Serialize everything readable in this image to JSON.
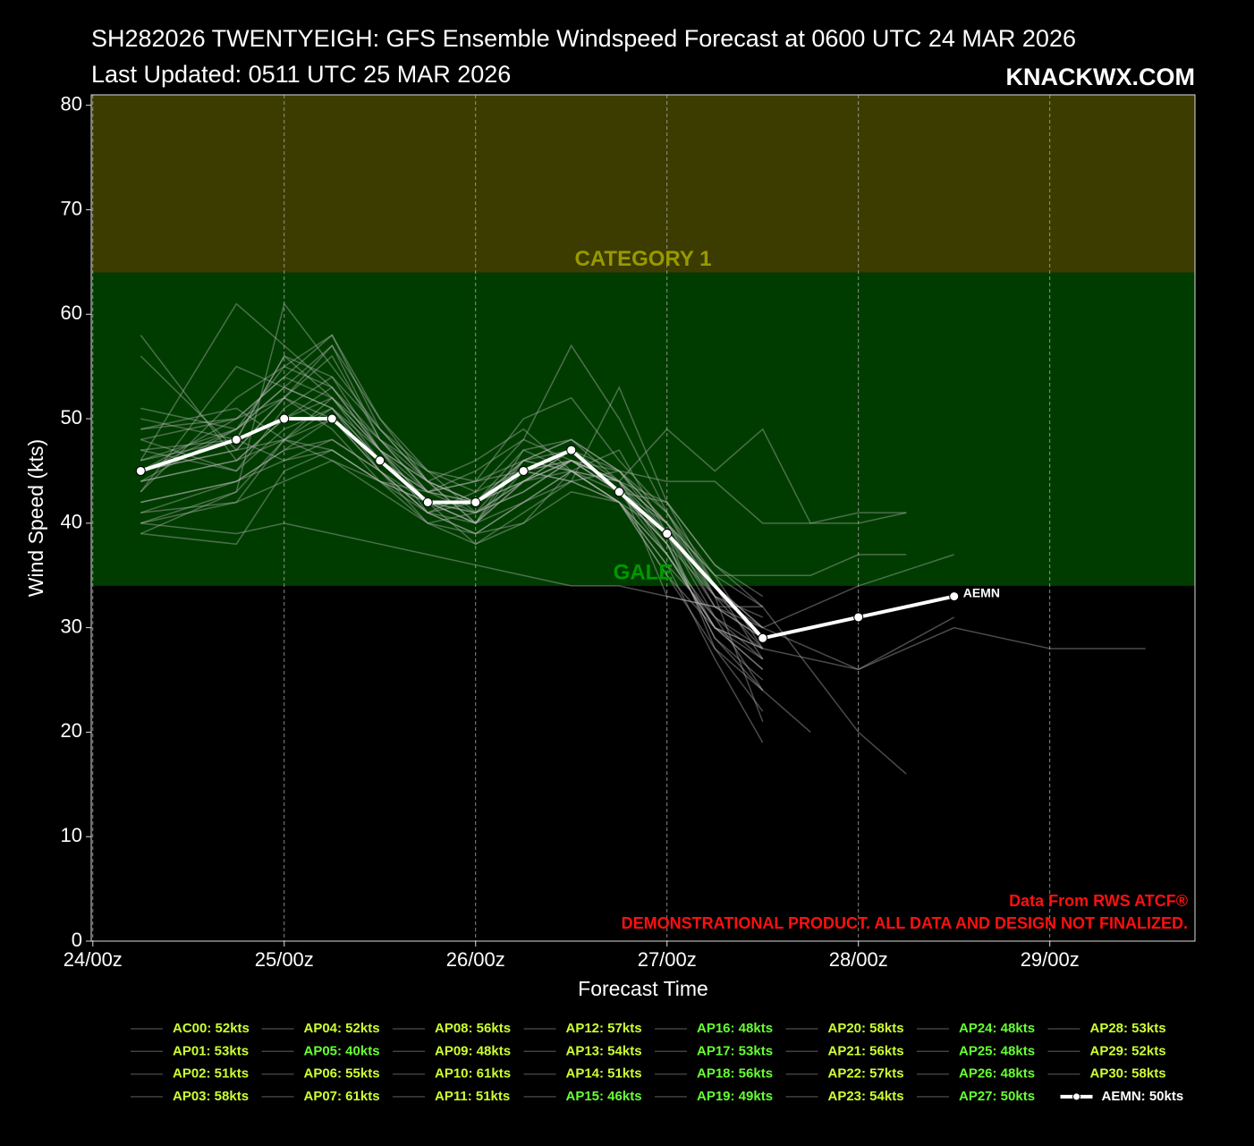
{
  "chart_data": {
    "type": "line",
    "title": "SH282026 TWENTYEIGH: GFS Ensemble Windspeed Forecast at 0600 UTC 24 MAR 2026",
    "subtitle": "Last Updated: 0511 UTC 25 MAR 2026",
    "brand": "KNACKWX.COM",
    "x_label": "Forecast Time",
    "y_label": "Wind Speed (kts)",
    "credit": "Data From RWS ATCF®",
    "disclaimer": "DEMONSTRATIONAL PRODUCT. ALL DATA AND DESIGN NOT FINALIZED.",
    "xlim": [
      -0.2,
      138.2
    ],
    "ylim": [
      0,
      81
    ],
    "xticks": [
      {
        "value": 0,
        "label": "24/00z"
      },
      {
        "value": 24,
        "label": "25/00z"
      },
      {
        "value": 48,
        "label": "26/00z"
      },
      {
        "value": 72,
        "label": "27/00z"
      },
      {
        "value": 96,
        "label": "28/00z"
      },
      {
        "value": 120,
        "label": "29/00z"
      }
    ],
    "yticks": [
      0,
      10,
      20,
      30,
      40,
      50,
      60,
      70,
      80
    ],
    "grid": true,
    "bands": [
      {
        "label": "GALE",
        "from": 34,
        "to": 64,
        "color": "#003c00",
        "label_color": "#009900"
      },
      {
        "label": "CATEGORY 1",
        "from": 64,
        "to": 83,
        "color": "#3c3c00",
        "label_color": "#999900"
      }
    ],
    "series": [
      {
        "name": "AC00: 52kts",
        "color": "#bbbbbb",
        "label_color": "#ccff33",
        "x": [
          6,
          18,
          24,
          30,
          36,
          42,
          48,
          54,
          60,
          66,
          72,
          78,
          84
        ],
        "values": [
          45,
          47,
          52,
          50,
          46,
          43,
          42,
          44,
          46,
          43,
          38,
          33,
          28
        ]
      },
      {
        "name": "AP01: 53kts",
        "color": "#bbbbbb",
        "label_color": "#ccff33",
        "x": [
          6,
          18,
          24,
          30,
          36,
          42,
          48,
          54,
          60,
          66,
          72,
          78,
          84
        ],
        "values": [
          44,
          49,
          53,
          51,
          47,
          42,
          41,
          46,
          48,
          44,
          40,
          34,
          30
        ]
      },
      {
        "name": "AP02: 51kts",
        "color": "#bbbbbb",
        "label_color": "#ccff33",
        "x": [
          6,
          18,
          24,
          30,
          36,
          42,
          48,
          54,
          60,
          66,
          72,
          78,
          84
        ],
        "values": [
          47,
          45,
          49,
          51,
          45,
          41,
          43,
          45,
          44,
          42,
          37,
          30,
          27
        ]
      },
      {
        "name": "AP03: 58kts",
        "color": "#bbbbbb",
        "label_color": "#ccff33",
        "x": [
          6,
          18,
          24,
          30,
          36,
          42,
          48,
          54,
          60,
          66,
          72,
          78,
          84
        ],
        "values": [
          58,
          46,
          50,
          52,
          48,
          44,
          40,
          47,
          45,
          42,
          36,
          31,
          24
        ]
      },
      {
        "name": "AP04: 52kts",
        "color": "#bbbbbb",
        "label_color": "#ccff33",
        "x": [
          6,
          18,
          24,
          30,
          36,
          42,
          48,
          54,
          60,
          66,
          72,
          78,
          84
        ],
        "values": [
          48,
          50,
          52,
          49,
          44,
          40,
          41,
          43,
          46,
          45,
          40,
          35,
          32
        ]
      },
      {
        "name": "AP05: 40kts",
        "color": "#bbbbbb",
        "label_color": "#66ff33",
        "x": [
          6,
          18,
          24,
          30,
          36,
          42,
          48,
          54,
          60,
          66,
          72,
          78,
          84
        ],
        "values": [
          40,
          39,
          40,
          39,
          38,
          37,
          36,
          35,
          34,
          34,
          33,
          32,
          30
        ]
      },
      {
        "name": "AP06: 55kts",
        "color": "#bbbbbb",
        "label_color": "#ccff33",
        "x": [
          6,
          18,
          24,
          30,
          36,
          42,
          48,
          54,
          60,
          66,
          72,
          78,
          84
        ],
        "values": [
          43,
          52,
          55,
          53,
          47,
          44,
          42,
          46,
          47,
          44,
          40,
          32,
          29
        ]
      },
      {
        "name": "AP07: 61kts",
        "color": "#bbbbbb",
        "label_color": "#ccff33",
        "x": [
          6,
          18,
          24,
          30,
          36,
          42,
          48,
          54,
          60,
          66,
          72,
          78,
          84
        ],
        "values": [
          46,
          61,
          57,
          53,
          48,
          45,
          44,
          50,
          52,
          46,
          41,
          33,
          21
        ]
      },
      {
        "name": "AP08: 56kts",
        "color": "#bbbbbb",
        "label_color": "#ccff33",
        "x": [
          6,
          18,
          24,
          30,
          36,
          42,
          48,
          54,
          60,
          66,
          72,
          78,
          84
        ],
        "values": [
          50,
          48,
          56,
          54,
          49,
          44,
          46,
          49,
          45,
          43,
          42,
          36,
          32
        ]
      },
      {
        "name": "AP09: 48kts",
        "color": "#bbbbbb",
        "label_color": "#ccff33",
        "x": [
          6,
          18,
          24,
          30,
          36,
          42,
          48,
          54,
          60,
          66,
          72,
          78,
          84,
          90,
          96,
          102
        ],
        "values": [
          42,
          44,
          46,
          48,
          45,
          42,
          40,
          42,
          44,
          45,
          44,
          44,
          40,
          40,
          41,
          41
        ]
      },
      {
        "name": "AP10: 61kts",
        "color": "#bbbbbb",
        "label_color": "#ccff33",
        "x": [
          6,
          18,
          24,
          30,
          36,
          42,
          48,
          54,
          60,
          66,
          72,
          78,
          84
        ],
        "values": [
          39,
          43,
          61,
          55,
          49,
          45,
          43,
          48,
          57,
          50,
          41,
          35,
          28
        ]
      },
      {
        "name": "AP11: 51kts",
        "color": "#bbbbbb",
        "label_color": "#ccff33",
        "x": [
          6,
          18,
          24,
          30,
          36,
          42,
          48,
          54,
          60,
          66,
          72,
          78,
          84
        ],
        "values": [
          41,
          42,
          48,
          51,
          46,
          43,
          44,
          46,
          45,
          44,
          39,
          28,
          22
        ]
      },
      {
        "name": "AP12: 57kts",
        "color": "#bbbbbb",
        "label_color": "#ccff33",
        "x": [
          6,
          18,
          24,
          30,
          36,
          42,
          48,
          54,
          60,
          66,
          72,
          78,
          84
        ],
        "values": [
          56,
          47,
          52,
          57,
          50,
          45,
          41,
          44,
          46,
          43,
          37,
          30,
          26
        ]
      },
      {
        "name": "AP13: 54kts",
        "color": "#bbbbbb",
        "label_color": "#ccff33",
        "x": [
          6,
          18,
          24,
          30,
          36,
          42,
          48,
          54,
          60,
          66,
          72,
          78,
          84
        ],
        "values": [
          45,
          50,
          54,
          52,
          46,
          42,
          40,
          44,
          47,
          43,
          38,
          29,
          25
        ]
      },
      {
        "name": "AP14: 51kts",
        "color": "#bbbbbb",
        "label_color": "#ccff33",
        "x": [
          6,
          18,
          24,
          30,
          36,
          42,
          48,
          54,
          60,
          66,
          72,
          78,
          84
        ],
        "values": [
          49,
          51,
          48,
          50,
          45,
          40,
          39,
          42,
          45,
          42,
          36,
          27,
          19
        ]
      },
      {
        "name": "AP15: 46kts",
        "color": "#bbbbbb",
        "label_color": "#66ff33",
        "x": [
          6,
          18,
          24,
          30,
          36,
          42,
          48,
          54,
          60,
          66,
          72,
          78,
          84
        ],
        "values": [
          40,
          42,
          44,
          46,
          44,
          41,
          39,
          40,
          43,
          42,
          37,
          30,
          28
        ]
      },
      {
        "name": "AP16: 48kts",
        "color": "#bbbbbb",
        "label_color": "#66ff33",
        "x": [
          6,
          18,
          24,
          30,
          36,
          42,
          48,
          54,
          60,
          66,
          72,
          78,
          84
        ],
        "values": [
          47,
          48,
          46,
          47,
          44,
          42,
          38,
          40,
          45,
          47,
          39,
          33,
          31
        ]
      },
      {
        "name": "AP17: 53kts",
        "color": "#bbbbbb",
        "label_color": "#66ff33",
        "x": [
          6,
          18,
          24,
          30,
          36,
          42,
          48,
          54,
          60,
          66,
          72,
          78,
          84
        ],
        "values": [
          44,
          46,
          50,
          53,
          47,
          41,
          42,
          45,
          44,
          53,
          42,
          34,
          27
        ]
      },
      {
        "name": "AP18: 56kts",
        "color": "#bbbbbb",
        "label_color": "#66ff33",
        "x": [
          6,
          18,
          24,
          30,
          36,
          42,
          48,
          54,
          60,
          66,
          72,
          78,
          84
        ],
        "values": [
          51,
          49,
          52,
          56,
          48,
          43,
          45,
          48,
          46,
          44,
          42,
          36,
          33
        ]
      },
      {
        "name": "AP19: 49kts",
        "color": "#bbbbbb",
        "label_color": "#66ff33",
        "x": [
          6,
          18,
          24,
          30,
          36,
          42,
          48,
          54,
          60,
          66,
          72,
          78,
          84,
          90,
          96,
          102
        ],
        "values": [
          39,
          38,
          45,
          47,
          44,
          43,
          44,
          45,
          46,
          44,
          49,
          45,
          49,
          40,
          40,
          41
        ]
      },
      {
        "name": "AP20: 58kts",
        "color": "#bbbbbb",
        "label_color": "#ccff33",
        "x": [
          6,
          18,
          24,
          30,
          36,
          42,
          48,
          54,
          60,
          66,
          72,
          78,
          84
        ],
        "values": [
          45,
          49,
          55,
          58,
          50,
          44,
          42,
          47,
          48,
          45,
          39,
          31,
          27
        ]
      },
      {
        "name": "AP21: 56kts",
        "color": "#bbbbbb",
        "label_color": "#ccff33",
        "x": [
          6,
          18,
          24,
          30,
          36,
          42,
          48,
          54,
          60,
          66,
          72,
          78,
          84
        ],
        "values": [
          46,
          48,
          56,
          52,
          47,
          42,
          41,
          43,
          46,
          44,
          38,
          30,
          26
        ]
      },
      {
        "name": "AP22: 57kts",
        "color": "#bbbbbb",
        "label_color": "#ccff33",
        "x": [
          6,
          18,
          24,
          30,
          36,
          42,
          48,
          54,
          60,
          66,
          72,
          78,
          84
        ],
        "values": [
          43,
          55,
          53,
          57,
          48,
          43,
          42,
          45,
          47,
          43,
          38,
          29,
          24
        ]
      },
      {
        "name": "AP23: 54kts",
        "color": "#bbbbbb",
        "label_color": "#ccff33",
        "x": [
          6,
          18,
          24,
          30,
          36,
          42,
          48,
          54,
          60,
          66,
          72,
          78,
          84
        ],
        "values": [
          48,
          45,
          51,
          54,
          47,
          44,
          40,
          46,
          45,
          42,
          39,
          32,
          29
        ]
      },
      {
        "name": "AP24: 48kts",
        "color": "#bbbbbb",
        "label_color": "#66ff33",
        "x": [
          6,
          18,
          24,
          30,
          36,
          42,
          48,
          54,
          60,
          66,
          72,
          78,
          84,
          90,
          96,
          102
        ],
        "values": [
          42,
          44,
          47,
          48,
          45,
          41,
          40,
          44,
          46,
          43,
          40,
          35,
          35,
          35,
          37,
          37
        ]
      },
      {
        "name": "AP25: 48kts",
        "color": "#bbbbbb",
        "label_color": "#66ff33",
        "x": [
          6,
          18,
          24,
          30,
          36,
          42,
          48,
          54,
          60,
          66,
          72,
          78,
          84,
          96,
          108,
          120,
          132
        ],
        "values": [
          45,
          47,
          48,
          46,
          43,
          40,
          38,
          41,
          44,
          42,
          35,
          30,
          28,
          26,
          30,
          28,
          28
        ]
      },
      {
        "name": "AP26: 48kts",
        "color": "#bbbbbb",
        "label_color": "#66ff33",
        "x": [
          6,
          18,
          24,
          30,
          36,
          42,
          48,
          54,
          60,
          66,
          72,
          78,
          84,
          96,
          102
        ],
        "values": [
          44,
          46,
          48,
          47,
          44,
          42,
          42,
          44,
          45,
          44,
          33,
          32,
          32,
          20,
          16
        ]
      },
      {
        "name": "AP27: 50kts",
        "color": "#bbbbbb",
        "label_color": "#66ff33",
        "x": [
          6,
          18,
          24,
          30,
          36,
          42,
          48,
          54,
          60,
          66,
          72,
          78,
          84,
          90
        ],
        "values": [
          41,
          44,
          47,
          50,
          45,
          41,
          39,
          42,
          45,
          42,
          35,
          28,
          24,
          20
        ]
      },
      {
        "name": "AP28: 53kts",
        "color": "#bbbbbb",
        "label_color": "#ccff33",
        "x": [
          6,
          18,
          24,
          30,
          36,
          42,
          48,
          54,
          60,
          66,
          72,
          78,
          84
        ],
        "values": [
          46,
          49,
          53,
          51,
          46,
          42,
          40,
          45,
          46,
          44,
          37,
          31,
          28
        ]
      },
      {
        "name": "AP29: 52kts",
        "color": "#bbbbbb",
        "label_color": "#ccff33",
        "x": [
          6,
          18,
          24,
          30,
          36,
          42,
          48,
          54,
          60,
          66,
          72,
          78,
          84,
          96,
          108
        ],
        "values": [
          40,
          43,
          48,
          52,
          47,
          43,
          41,
          44,
          47,
          45,
          41,
          34,
          30,
          26,
          31
        ]
      },
      {
        "name": "AP30: 58kts",
        "color": "#bbbbbb",
        "label_color": "#ccff33",
        "x": [
          6,
          18,
          24,
          30,
          36,
          42,
          48,
          54,
          60,
          66,
          72,
          78,
          84,
          96,
          108
        ],
        "values": [
          49,
          50,
          54,
          58,
          49,
          44,
          42,
          46,
          48,
          45,
          40,
          33,
          30,
          34,
          37
        ]
      },
      {
        "name": "AEMN: 50kts",
        "end_label": "AEMN",
        "color": "#ffffff",
        "label_color": "#ffffff",
        "mean": true,
        "x": [
          6,
          18,
          24,
          30,
          36,
          42,
          48,
          54,
          60,
          66,
          72,
          84,
          96,
          108
        ],
        "values": [
          45,
          48,
          50,
          50,
          46,
          42,
          42,
          45,
          47,
          43,
          39,
          29,
          31,
          33
        ]
      }
    ]
  }
}
